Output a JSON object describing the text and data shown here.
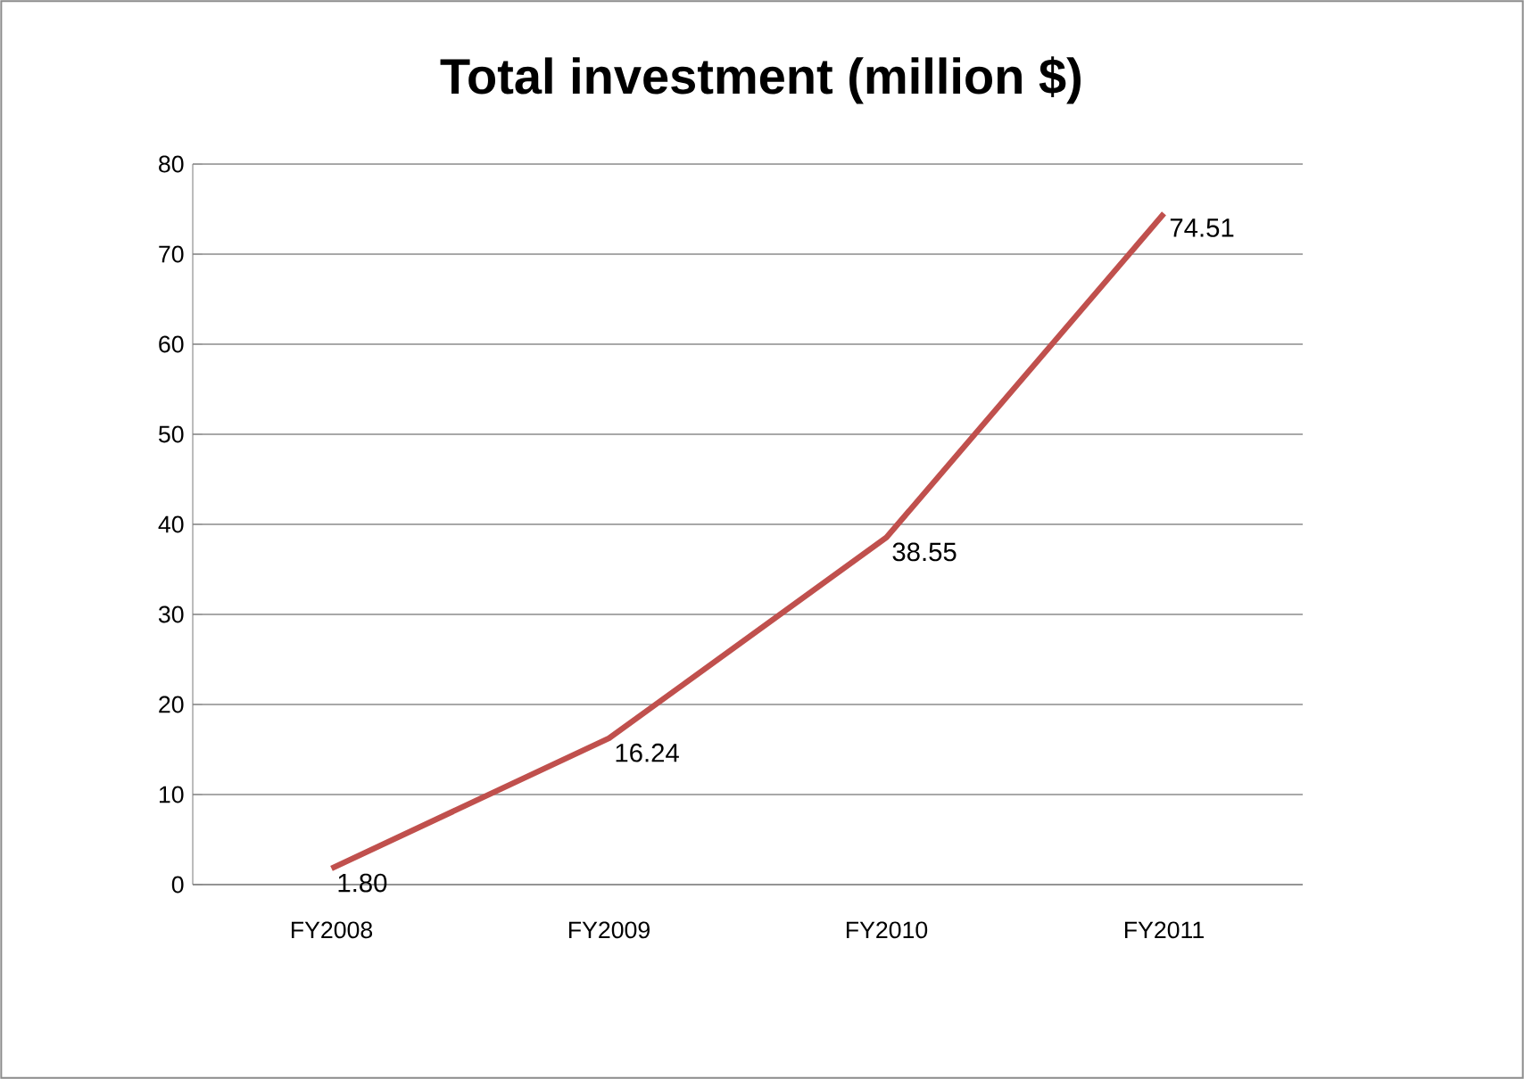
{
  "chart_data": {
    "type": "line",
    "title": "Total investment (million $)",
    "categories": [
      "FY2008",
      "FY2009",
      "FY2010",
      "FY2011"
    ],
    "series": [
      {
        "color": "#c0504d",
        "values": [
          1.8,
          16.24,
          38.55,
          74.51
        ],
        "value_labels": [
          "1.80",
          "16.24",
          "38.55",
          "74.51"
        ]
      }
    ],
    "ylim": [
      0,
      80
    ],
    "yticks": [
      0,
      10,
      20,
      30,
      40,
      50,
      60,
      70,
      80
    ],
    "grid": "y",
    "legend": false,
    "marker": "none",
    "line_style": "solid"
  }
}
